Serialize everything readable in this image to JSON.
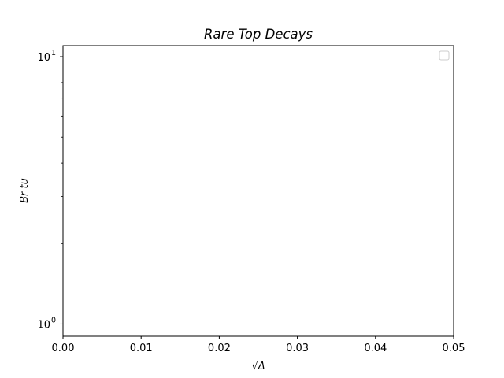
{
  "chart_data": {
    "type": "line",
    "title": "Rare Top Decays",
    "xlabel": "√Δ",
    "ylabel": "Br tu",
    "xscale": "linear",
    "yscale": "log",
    "xlim": [
      0.0,
      0.05
    ],
    "ylim": [
      0.9,
      11.0
    ],
    "x_ticks": [
      {
        "value": 0.0,
        "label": "0.00"
      },
      {
        "value": 0.01,
        "label": "0.01"
      },
      {
        "value": 0.02,
        "label": "0.02"
      },
      {
        "value": 0.03,
        "label": "0.03"
      },
      {
        "value": 0.04,
        "label": "0.04"
      },
      {
        "value": 0.05,
        "label": "0.05"
      }
    ],
    "y_ticks": [
      {
        "value": 1,
        "base": "10",
        "exponent": "0"
      },
      {
        "value": 10,
        "base": "10",
        "exponent": "1"
      }
    ],
    "y_minor_ticks": [
      2,
      3,
      4,
      5,
      6,
      7,
      8,
      9
    ],
    "grid": false,
    "legend": {
      "position": "top-right",
      "entries": []
    },
    "series": []
  },
  "colors": {
    "axes": "#000000",
    "background": "#ffffff",
    "legend_border": "#cccccc"
  }
}
